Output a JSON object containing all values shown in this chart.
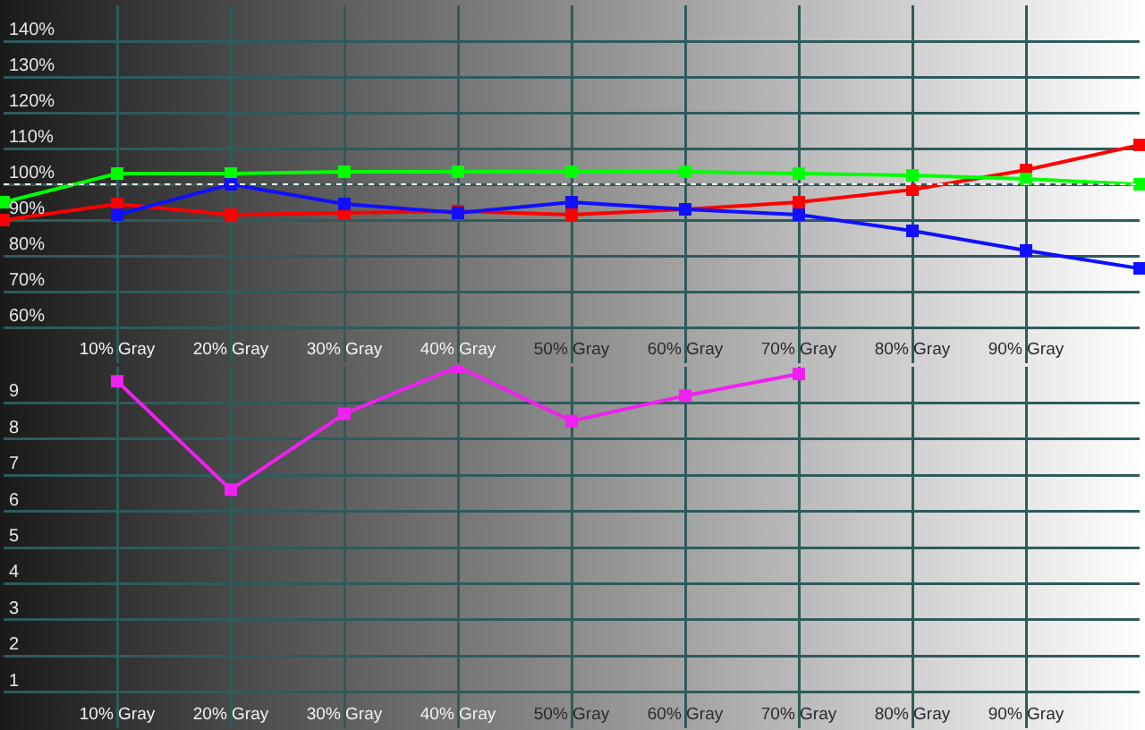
{
  "chart_data": [
    {
      "type": "line",
      "x": [
        0,
        10,
        20,
        30,
        40,
        50,
        60,
        70,
        80,
        90,
        100
      ],
      "xlim": [
        0,
        100
      ],
      "xticks": [
        {
          "value": 10,
          "label": "10% Gray"
        },
        {
          "value": 20,
          "label": "20% Gray"
        },
        {
          "value": 30,
          "label": "30% Gray"
        },
        {
          "value": 40,
          "label": "40% Gray"
        },
        {
          "value": 50,
          "label": "50% Gray"
        },
        {
          "value": 60,
          "label": "60% Gray"
        },
        {
          "value": 70,
          "label": "70% Gray"
        },
        {
          "value": 80,
          "label": "80% Gray"
        },
        {
          "value": 90,
          "label": "90% Gray"
        }
      ],
      "ylim": [
        50,
        150
      ],
      "yticks": [
        {
          "value": 60,
          "label": "60%"
        },
        {
          "value": 70,
          "label": "70%"
        },
        {
          "value": 80,
          "label": "80%"
        },
        {
          "value": 90,
          "label": "90%"
        },
        {
          "value": 100,
          "label": "100%"
        },
        {
          "value": 110,
          "label": "110%"
        },
        {
          "value": 120,
          "label": "120%"
        },
        {
          "value": 130,
          "label": "130%"
        },
        {
          "value": 140,
          "label": "140%"
        }
      ],
      "grid": true,
      "marker": "square",
      "line_style": "solid",
      "ref_lines": [
        {
          "axis": "y",
          "value": 100,
          "color": "#ffffff",
          "line_style": "dotted"
        }
      ],
      "series": [
        {
          "color": "#ff0000",
          "values": [
            90,
            94.5,
            91.5,
            92,
            92.5,
            91.5,
            93,
            95,
            98.5,
            104,
            111
          ]
        },
        {
          "color": "#00ff00",
          "values": [
            95,
            103,
            103,
            103.5,
            103.5,
            103.5,
            103.5,
            103,
            102.5,
            101.5,
            100
          ]
        },
        {
          "color": "#1010ff",
          "values": [
            null,
            91.5,
            100,
            94.5,
            92,
            95,
            93,
            91.5,
            87,
            81.5,
            76.5
          ]
        }
      ]
    },
    {
      "type": "line",
      "x": [
        10,
        20,
        30,
        40,
        50,
        60,
        70
      ],
      "xlim": [
        0,
        100
      ],
      "xticks": [
        {
          "value": 10,
          "label": "10% Gray"
        },
        {
          "value": 20,
          "label": "20% Gray"
        },
        {
          "value": 30,
          "label": "30% Gray"
        },
        {
          "value": 40,
          "label": "40% Gray"
        },
        {
          "value": 50,
          "label": "50% Gray"
        },
        {
          "value": 60,
          "label": "60% Gray"
        },
        {
          "value": 70,
          "label": "70% Gray"
        },
        {
          "value": 80,
          "label": "80% Gray"
        },
        {
          "value": 90,
          "label": "90% Gray"
        }
      ],
      "ylim": [
        0,
        10
      ],
      "yticks": [
        1,
        2,
        3,
        4,
        5,
        6,
        7,
        8,
        9
      ],
      "grid": true,
      "marker": "square",
      "line_style": "solid",
      "series": [
        {
          "color": "#f020f0",
          "values": [
            9.6,
            6.6,
            8.7,
            10,
            8.5,
            9.2,
            9.8
          ]
        }
      ]
    }
  ]
}
